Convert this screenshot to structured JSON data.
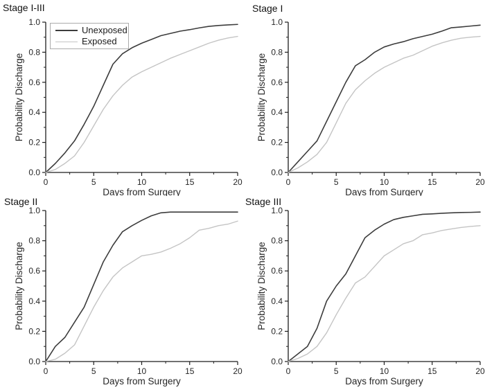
{
  "figure": {
    "xlabel": "Days from Surgery",
    "ylabel": "Probability Discharge",
    "legend": {
      "unexposed": "Unexposed",
      "exposed": "Exposed"
    },
    "colors": {
      "unexposed": "#3c3c3c",
      "exposed": "#c4c4c4",
      "axis": "#1c1c1c",
      "text": "#262626",
      "background": "#ffffff",
      "legend_border": "#ababab"
    },
    "x_tick_labels": [
      "0",
      "5",
      "10",
      "15",
      "20"
    ],
    "y_tick_labels": [
      "0.0",
      "0.2",
      "0.4",
      "0.6",
      "0.8",
      "1.0"
    ]
  },
  "chart_data": [
    {
      "type": "line",
      "title": "Stage I-III",
      "xlabel": "Days from Surgery",
      "ylabel": "Probability Discharge",
      "xlim": [
        0,
        20
      ],
      "ylim": [
        0,
        1.0
      ],
      "grid": false,
      "legend_visible": true,
      "legend_position": "top-left",
      "x": [
        0,
        1,
        2,
        3,
        4,
        5,
        6,
        7,
        8,
        9,
        10,
        11,
        12,
        13,
        14,
        15,
        16,
        17,
        18,
        19,
        20
      ],
      "series": [
        {
          "name": "Unexposed",
          "values": [
            0,
            0.06,
            0.13,
            0.21,
            0.32,
            0.44,
            0.58,
            0.72,
            0.79,
            0.83,
            0.86,
            0.885,
            0.91,
            0.925,
            0.94,
            0.95,
            0.962,
            0.972,
            0.978,
            0.982,
            0.985
          ]
        },
        {
          "name": "Exposed",
          "values": [
            0,
            0.02,
            0.06,
            0.11,
            0.2,
            0.31,
            0.42,
            0.51,
            0.58,
            0.635,
            0.67,
            0.7,
            0.73,
            0.76,
            0.785,
            0.81,
            0.835,
            0.86,
            0.88,
            0.895,
            0.905
          ]
        }
      ]
    },
    {
      "type": "line",
      "title": "Stage I",
      "xlabel": "Days from Surgery",
      "ylabel": "Probability Discharge",
      "xlim": [
        0,
        20
      ],
      "ylim": [
        0,
        1.0
      ],
      "grid": false,
      "legend_visible": false,
      "legend_position": "none",
      "x": [
        0,
        1,
        2,
        3,
        4,
        5,
        6,
        7,
        8,
        9,
        10,
        11,
        12,
        13,
        14,
        15,
        16,
        17,
        18,
        19,
        20
      ],
      "series": [
        {
          "name": "Unexposed",
          "values": [
            0,
            0.07,
            0.14,
            0.21,
            0.34,
            0.47,
            0.6,
            0.71,
            0.75,
            0.8,
            0.835,
            0.855,
            0.87,
            0.89,
            0.905,
            0.92,
            0.94,
            0.963,
            0.968,
            0.974,
            0.98
          ]
        },
        {
          "name": "Exposed",
          "values": [
            0,
            0.03,
            0.07,
            0.12,
            0.2,
            0.33,
            0.46,
            0.55,
            0.61,
            0.66,
            0.7,
            0.73,
            0.76,
            0.78,
            0.81,
            0.84,
            0.862,
            0.88,
            0.893,
            0.9,
            0.905
          ]
        }
      ]
    },
    {
      "type": "line",
      "title": "Stage II",
      "xlabel": "Days from Surgery",
      "ylabel": "Probability Discharge",
      "xlim": [
        0,
        20
      ],
      "ylim": [
        0,
        1.0
      ],
      "grid": false,
      "legend_visible": false,
      "legend_position": "none",
      "x": [
        0,
        1,
        2,
        3,
        4,
        5,
        6,
        7,
        8,
        9,
        10,
        11,
        12,
        13,
        14,
        15,
        16,
        17,
        18,
        19,
        20
      ],
      "series": [
        {
          "name": "Unexposed",
          "values": [
            0,
            0.1,
            0.16,
            0.26,
            0.36,
            0.51,
            0.66,
            0.77,
            0.86,
            0.9,
            0.935,
            0.965,
            0.985,
            0.99,
            0.99,
            0.99,
            0.99,
            0.99,
            0.99,
            0.99,
            0.99
          ]
        },
        {
          "name": "Exposed",
          "values": [
            0,
            0.015,
            0.055,
            0.11,
            0.235,
            0.36,
            0.47,
            0.56,
            0.62,
            0.66,
            0.7,
            0.71,
            0.725,
            0.75,
            0.78,
            0.82,
            0.87,
            0.882,
            0.9,
            0.91,
            0.93
          ]
        }
      ]
    },
    {
      "type": "line",
      "title": "Stage III",
      "xlabel": "Days from Surgery",
      "ylabel": "Probability Discharge",
      "xlim": [
        0,
        20
      ],
      "ylim": [
        0,
        1.0
      ],
      "grid": false,
      "legend_visible": false,
      "legend_position": "none",
      "x": [
        0,
        1,
        2,
        3,
        4,
        5,
        6,
        7,
        8,
        9,
        10,
        11,
        12,
        13,
        14,
        15,
        16,
        17,
        18,
        19,
        20
      ],
      "series": [
        {
          "name": "Unexposed",
          "values": [
            0,
            0.05,
            0.1,
            0.22,
            0.4,
            0.5,
            0.58,
            0.7,
            0.82,
            0.87,
            0.91,
            0.94,
            0.955,
            0.965,
            0.975,
            0.978,
            0.982,
            0.985,
            0.987,
            0.988,
            0.99
          ]
        },
        {
          "name": "Exposed",
          "values": [
            0,
            0.02,
            0.05,
            0.1,
            0.19,
            0.31,
            0.42,
            0.52,
            0.56,
            0.63,
            0.7,
            0.74,
            0.78,
            0.8,
            0.84,
            0.852,
            0.868,
            0.878,
            0.888,
            0.895,
            0.9
          ]
        }
      ]
    }
  ]
}
